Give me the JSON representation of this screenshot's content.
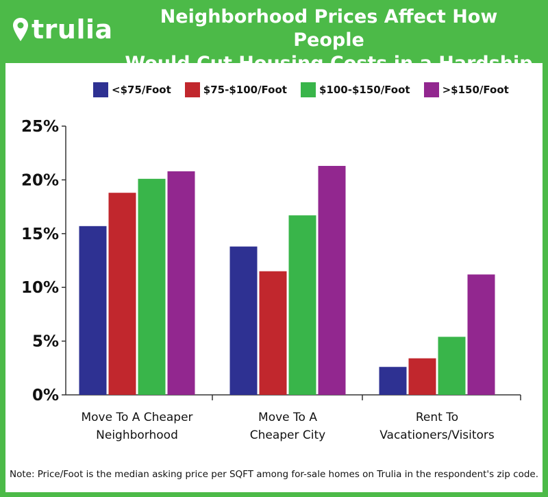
{
  "header": {
    "logo_text": "trulia",
    "title_line1": "Neighborhood Prices Affect How People",
    "title_line2": "Would Cut Housing Costs in a Hardship"
  },
  "colors": {
    "frame": "#4cba48",
    "series": [
      "#2e3192",
      "#c1272d",
      "#39b54a",
      "#92278f"
    ]
  },
  "chart_data": {
    "type": "bar",
    "title": "Neighborhood Prices Affect How People Would Cut Housing Costs in a Hardship",
    "categories": [
      [
        "Move To A Cheaper",
        "Neighborhood"
      ],
      [
        "Move To A",
        "Cheaper City"
      ],
      [
        "Rent To",
        "Vacationers/Visitors"
      ]
    ],
    "series": [
      {
        "name": "<$75/Foot",
        "values": [
          15.7,
          13.8,
          2.6
        ]
      },
      {
        "name": "$75-$100/Foot",
        "values": [
          18.8,
          11.5,
          3.4
        ]
      },
      {
        "name": "$100-$150/Foot",
        "values": [
          20.1,
          16.7,
          5.4
        ]
      },
      {
        "name": ">$150/Foot",
        "values": [
          20.8,
          21.3,
          11.2
        ]
      }
    ],
    "yticks": [
      "0%",
      "5%",
      "10%",
      "15%",
      "20%",
      "25%"
    ],
    "ylim": [
      0,
      25
    ],
    "xlabel": "",
    "ylabel": "",
    "legend_position": "top"
  },
  "note": "Note: Price/Foot is the median asking price per SQFT among for-sale homes on Trulia in the respondent's zip code."
}
